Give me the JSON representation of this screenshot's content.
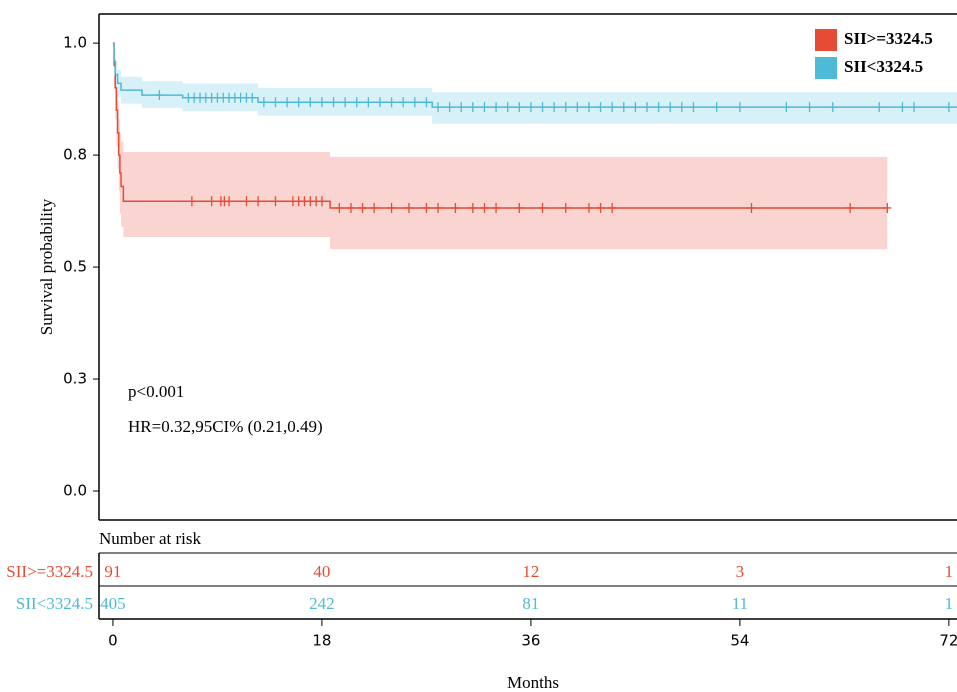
{
  "chart_data": {
    "type": "survival",
    "ylabel": "Survival probability",
    "xlabel": "Months",
    "xlim": [
      -1.2,
      72.7
    ],
    "ylim": [
      -0.0625,
      1.065
    ],
    "xticks": [
      0,
      18,
      36,
      54,
      72
    ],
    "yticks": [
      {
        "value": 0,
        "label": "0.0"
      },
      {
        "value": 0.25,
        "label": "0.3"
      },
      0.5,
      {
        "value": 0.75,
        "label": "0.8"
      },
      {
        "value": 1,
        "label": "1.0"
      }
    ],
    "legend": "upper right",
    "annotations": [
      "p<0.001",
      "HR=0.32,95CI% (0.21,0.49)"
    ],
    "series": [
      {
        "name": "SII>=3324.5",
        "color": "#e64b35",
        "band_color": "#f9d4d0",
        "x": [
          0,
          0.1,
          0.2,
          0.3,
          0.4,
          0.5,
          0.6,
          0.7,
          0.9,
          18.7,
          66.7
        ],
        "values": [
          1,
          0.95,
          0.9,
          0.85,
          0.8,
          0.75,
          0.71,
          0.68,
          0.647,
          0.632,
          0.632
        ],
        "ci_upper": [
          1,
          0.98,
          0.95,
          0.91,
          0.87,
          0.83,
          0.8,
          0.78,
          0.757,
          0.746,
          0.746
        ],
        "ci_lower": [
          1,
          0.9,
          0.83,
          0.77,
          0.72,
          0.67,
          0.62,
          0.59,
          0.567,
          0.54,
          0.54
        ],
        "censored": {
          "x": [
            6.8,
            8.5,
            9.3,
            9.6,
            10,
            11.5,
            12.5,
            14,
            15.5,
            16,
            16.5,
            17,
            17.5,
            18,
            19.5,
            20.5,
            21.5,
            22.5,
            24,
            25.5,
            27,
            28,
            29.5,
            31,
            32,
            33,
            35,
            37,
            39,
            41,
            42,
            43,
            55,
            63.5,
            66.7
          ],
          "values": [
            0.647,
            0.647,
            0.647,
            0.647,
            0.647,
            0.647,
            0.647,
            0.647,
            0.647,
            0.647,
            0.647,
            0.647,
            0.647,
            0.647,
            0.632,
            0.632,
            0.632,
            0.632,
            0.632,
            0.632,
            0.632,
            0.632,
            0.632,
            0.632,
            0.632,
            0.632,
            0.632,
            0.632,
            0.632,
            0.632,
            0.632,
            0.632,
            0.632,
            0.632,
            0.632
          ]
        },
        "at_risk": [
          91,
          40,
          12,
          3,
          1
        ]
      },
      {
        "name": "SII<3324.5",
        "color": "#4dbbd5",
        "band_color": "#d8f0f7",
        "x": [
          0,
          0.1,
          0.2,
          0.4,
          0.7,
          2.5,
          6,
          12.5,
          27.5,
          72.7
        ],
        "values": [
          1,
          0.96,
          0.93,
          0.91,
          0.895,
          0.884,
          0.878,
          0.868,
          0.857,
          0.857
        ],
        "ci_upper": [
          1,
          0.98,
          0.96,
          0.94,
          0.925,
          0.915,
          0.91,
          0.9,
          0.89,
          0.89
        ],
        "ci_lower": [
          1,
          0.94,
          0.9,
          0.88,
          0.865,
          0.855,
          0.848,
          0.838,
          0.82,
          0.82
        ],
        "censored": {
          "x": [
            4,
            6.5,
            7,
            7.5,
            8,
            8.5,
            9,
            9.5,
            10,
            10.5,
            11,
            11.5,
            12,
            13,
            14,
            15,
            16,
            17,
            18,
            19,
            20,
            21,
            22,
            23,
            24,
            25,
            26,
            27,
            28,
            29,
            30,
            31,
            32,
            33,
            34,
            35,
            36,
            37,
            38,
            39,
            40,
            41,
            42,
            43,
            44,
            45,
            46,
            47,
            48,
            49,
            50,
            52,
            54,
            58,
            60,
            62,
            66,
            68,
            69,
            72
          ],
          "values": [
            0.884,
            0.878,
            0.878,
            0.878,
            0.878,
            0.878,
            0.878,
            0.878,
            0.878,
            0.878,
            0.878,
            0.878,
            0.878,
            0.868,
            0.868,
            0.868,
            0.868,
            0.868,
            0.868,
            0.868,
            0.868,
            0.868,
            0.868,
            0.868,
            0.868,
            0.868,
            0.868,
            0.868,
            0.857,
            0.857,
            0.857,
            0.857,
            0.857,
            0.857,
            0.857,
            0.857,
            0.857,
            0.857,
            0.857,
            0.857,
            0.857,
            0.857,
            0.857,
            0.857,
            0.857,
            0.857,
            0.857,
            0.857,
            0.857,
            0.857,
            0.857,
            0.857,
            0.857,
            0.857,
            0.857,
            0.857,
            0.857,
            0.857,
            0.857,
            0.857
          ]
        },
        "at_risk": [
          405,
          242,
          81,
          11,
          1
        ]
      }
    ],
    "risk_table_title": "Number at risk"
  }
}
